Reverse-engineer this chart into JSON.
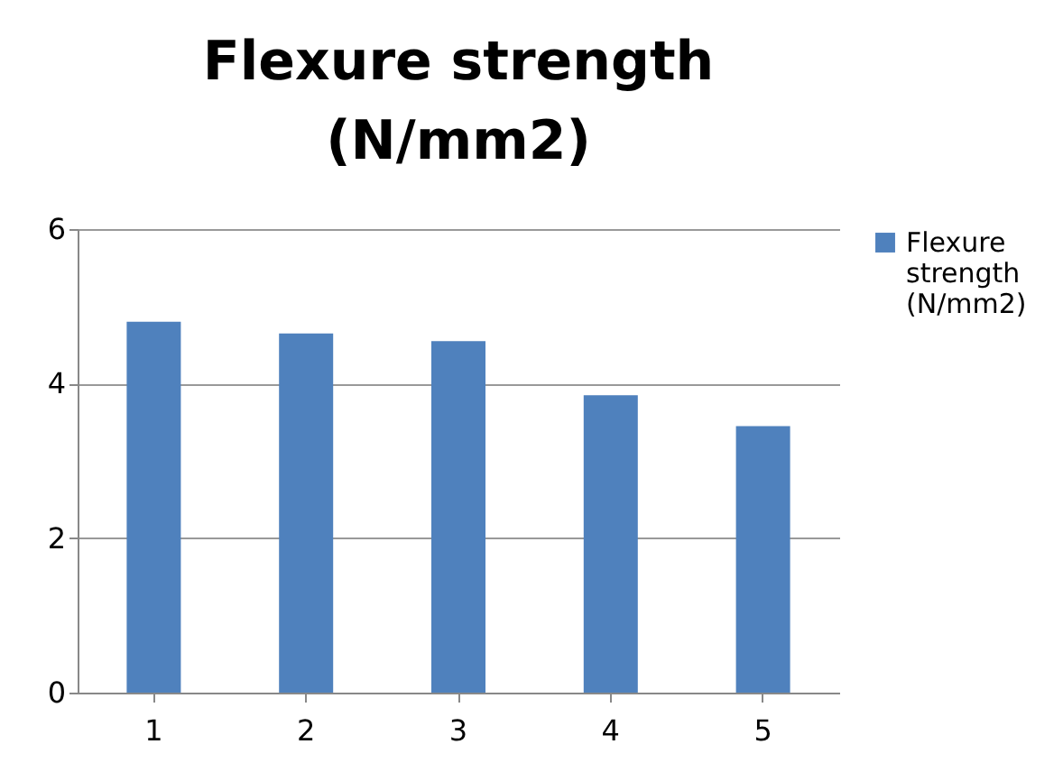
{
  "chart_data": {
    "type": "bar",
    "title": [
      "Flexure strength",
      "(N/mm2)"
    ],
    "categories": [
      "1",
      "2",
      "3",
      "4",
      "5"
    ],
    "series": [
      {
        "name": "Flexure strength (N/mm2)",
        "color": "#4f81bd",
        "values": [
          4.8,
          4.65,
          4.55,
          3.85,
          3.45
        ]
      }
    ],
    "ylim": [
      0,
      6
    ],
    "yticks": [
      0,
      2,
      4,
      6
    ],
    "grid": "y",
    "legend": "right"
  }
}
